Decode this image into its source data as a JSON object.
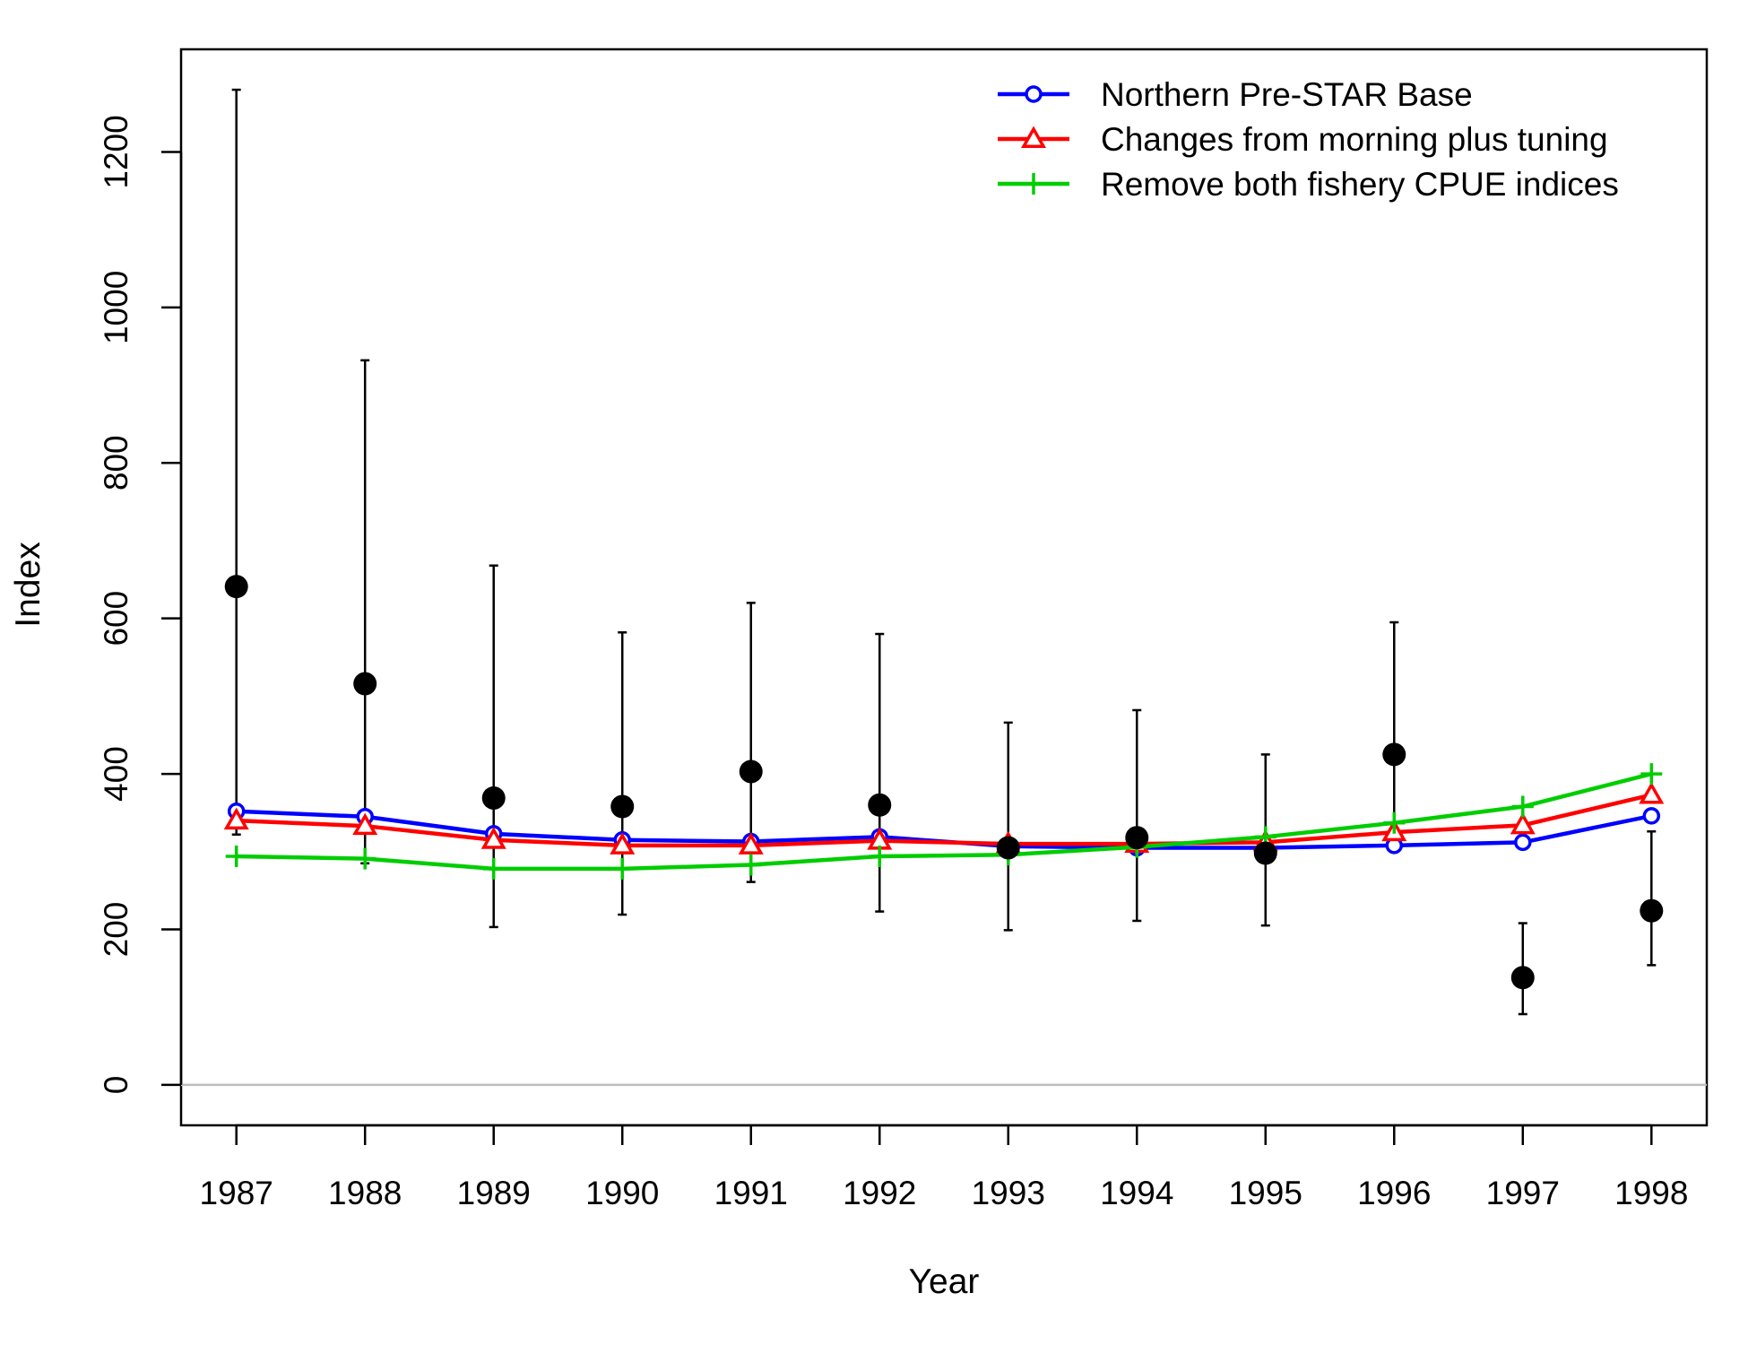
{
  "chart_data": {
    "type": "line",
    "xlabel": "Year",
    "ylabel": "Index",
    "x": [
      1987,
      1988,
      1989,
      1990,
      1991,
      1992,
      1993,
      1994,
      1995,
      1996,
      1997,
      1998
    ],
    "xlim": [
      1986.57,
      1998.43
    ],
    "ylim": [
      -52,
      1332
    ],
    "yticks": [
      0,
      200,
      400,
      600,
      800,
      1000,
      1200
    ],
    "grid": false,
    "reference_line": 0,
    "legend_position": "top-right",
    "observed": {
      "values": [
        641,
        516,
        369,
        358,
        403,
        360,
        305,
        318,
        298,
        425,
        138,
        224
      ],
      "lower": [
        322,
        285,
        203,
        219,
        261,
        223,
        199,
        211,
        205,
        302,
        91,
        154
      ],
      "upper": [
        1280,
        932,
        668,
        582,
        620,
        580,
        466,
        482,
        425,
        595,
        208,
        326
      ],
      "color": "#000000"
    },
    "series": [
      {
        "name": "Northern Pre-STAR Base",
        "values": [
          352,
          345,
          323,
          315,
          313,
          319,
          307,
          305,
          305,
          308,
          312,
          346
        ],
        "color": "#0000FF",
        "marker": "circle"
      },
      {
        "name": "Changes from morning plus tuning",
        "values": [
          340,
          333,
          315,
          308,
          308,
          314,
          310,
          310,
          312,
          325,
          334,
          373
        ],
        "color": "#FF0000",
        "marker": "triangle"
      },
      {
        "name": "Remove both fishery CPUE indices",
        "values": [
          294,
          291,
          278,
          278,
          283,
          294,
          296,
          306,
          319,
          337,
          358,
          400
        ],
        "color": "#00CD00",
        "marker": "plus"
      }
    ]
  }
}
